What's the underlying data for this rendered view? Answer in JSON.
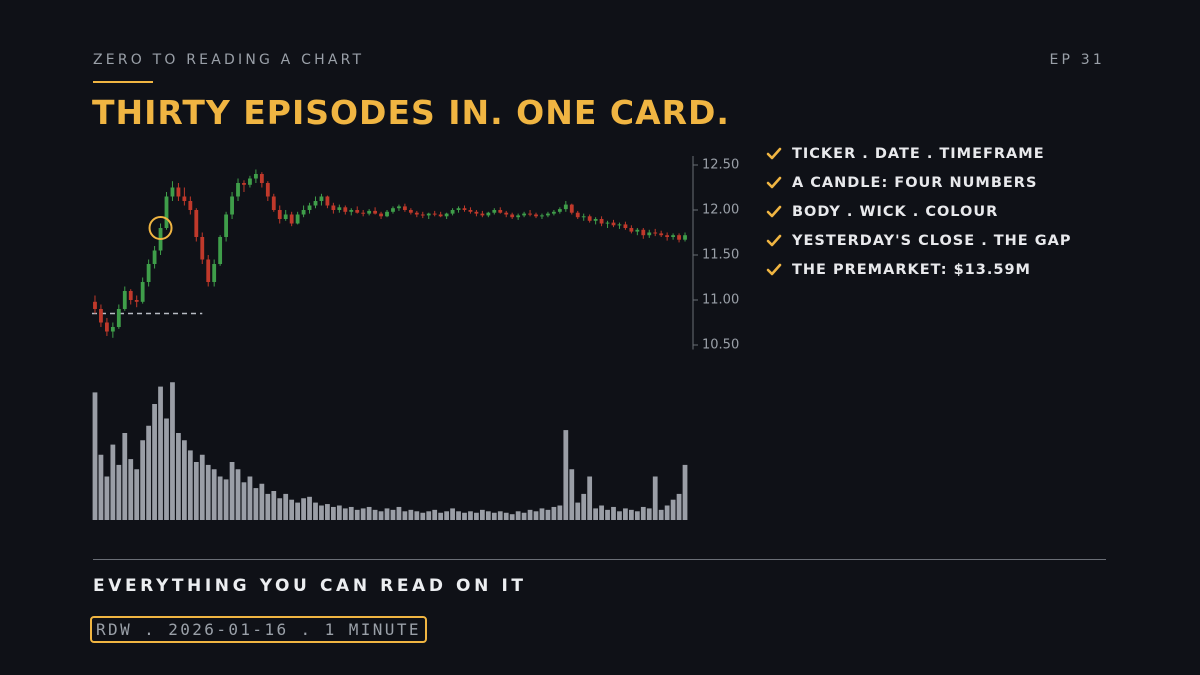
{
  "header": {
    "series": "ZERO TO READING A CHART",
    "episode": "EP 31",
    "title": "THIRTY EPISODES IN. ONE CARD."
  },
  "checklist": [
    "TICKER . DATE . TIMEFRAME",
    "A CANDLE: FOUR NUMBERS",
    "BODY . WICK . COLOUR",
    "YESTERDAY'S CLOSE . THE GAP",
    "THE PREMARKET: $13.59M"
  ],
  "footer": {
    "heading": "EVERYTHING YOU CAN READ ON IT",
    "tag": "RDW . 2026-01-16 . 1 MINUTE"
  },
  "chart_data": {
    "type": "candlestick",
    "ylim": [
      10.45,
      12.6
    ],
    "yticks": [
      {
        "value": 10.5,
        "label": "10.50"
      },
      {
        "value": 11,
        "label": "11.00"
      },
      {
        "value": 11.5,
        "label": "11.50"
      },
      {
        "value": 12,
        "label": "12.00"
      },
      {
        "value": 12.5,
        "label": "12.50"
      }
    ],
    "up_color": "#3f9e4a",
    "down_color": "#c0392b",
    "volume_color": "#9a9ea6",
    "prev_close": 10.85,
    "highlight_candle": 11,
    "volume_ylim": [
      0,
      100
    ],
    "candles": [
      [
        10.98,
        11.05,
        10.85,
        10.9
      ],
      [
        10.9,
        10.95,
        10.7,
        10.75
      ],
      [
        10.75,
        10.8,
        10.6,
        10.65
      ],
      [
        10.65,
        10.75,
        10.58,
        10.7
      ],
      [
        10.7,
        10.95,
        10.68,
        10.9
      ],
      [
        10.9,
        11.15,
        10.88,
        11.1
      ],
      [
        11.1,
        11.12,
        10.95,
        11.0
      ],
      [
        11.0,
        11.05,
        10.92,
        10.98
      ],
      [
        10.98,
        11.25,
        10.96,
        11.2
      ],
      [
        11.2,
        11.45,
        11.15,
        11.4
      ],
      [
        11.4,
        11.6,
        11.35,
        11.55
      ],
      [
        11.55,
        11.85,
        11.5,
        11.8
      ],
      [
        11.8,
        12.2,
        11.78,
        12.15
      ],
      [
        12.15,
        12.32,
        12.1,
        12.25
      ],
      [
        12.25,
        12.3,
        12.1,
        12.15
      ],
      [
        12.15,
        12.25,
        12.05,
        12.1
      ],
      [
        12.1,
        12.15,
        11.95,
        12.0
      ],
      [
        12.0,
        12.02,
        11.65,
        11.7
      ],
      [
        11.7,
        11.75,
        11.4,
        11.45
      ],
      [
        11.45,
        11.5,
        11.15,
        11.2
      ],
      [
        11.2,
        11.45,
        11.15,
        11.4
      ],
      [
        11.4,
        11.72,
        11.38,
        11.7
      ],
      [
        11.7,
        11.98,
        11.65,
        11.95
      ],
      [
        11.95,
        12.2,
        11.9,
        12.15
      ],
      [
        12.15,
        12.35,
        12.1,
        12.3
      ],
      [
        12.3,
        12.33,
        12.2,
        12.28
      ],
      [
        12.28,
        12.38,
        12.25,
        12.35
      ],
      [
        12.35,
        12.45,
        12.3,
        12.4
      ],
      [
        12.4,
        12.42,
        12.25,
        12.3
      ],
      [
        12.3,
        12.32,
        12.1,
        12.15
      ],
      [
        12.15,
        12.18,
        11.98,
        12.0
      ],
      [
        12.0,
        12.05,
        11.85,
        11.9
      ],
      [
        11.9,
        12.0,
        11.88,
        11.95
      ],
      [
        11.95,
        11.98,
        11.82,
        11.85
      ],
      [
        11.85,
        11.98,
        11.84,
        11.95
      ],
      [
        11.95,
        12.05,
        11.92,
        12.0
      ],
      [
        12.0,
        12.08,
        11.96,
        12.05
      ],
      [
        12.05,
        12.15,
        12.02,
        12.1
      ],
      [
        12.1,
        12.18,
        12.05,
        12.15
      ],
      [
        12.15,
        12.16,
        12.02,
        12.05
      ],
      [
        12.05,
        12.08,
        11.96,
        12.0
      ],
      [
        12.0,
        12.06,
        11.97,
        12.03
      ],
      [
        12.03,
        12.05,
        11.95,
        11.98
      ],
      [
        11.98,
        12.02,
        11.94,
        12.0
      ],
      [
        12.0,
        12.04,
        11.96,
        11.97
      ],
      [
        11.97,
        12.0,
        11.93,
        11.96
      ],
      [
        11.96,
        12.01,
        11.94,
        11.99
      ],
      [
        11.99,
        12.03,
        11.95,
        11.96
      ],
      [
        11.96,
        11.98,
        11.9,
        11.93
      ],
      [
        11.93,
        12.0,
        11.92,
        11.98
      ],
      [
        11.98,
        12.04,
        11.96,
        12.02
      ],
      [
        12.02,
        12.06,
        11.99,
        12.04
      ],
      [
        12.04,
        12.07,
        11.98,
        12.0
      ],
      [
        12.0,
        12.02,
        11.95,
        11.97
      ],
      [
        11.97,
        11.99,
        11.92,
        11.95
      ],
      [
        11.95,
        11.98,
        11.91,
        11.94
      ],
      [
        11.94,
        11.97,
        11.9,
        11.96
      ],
      [
        11.96,
        11.99,
        11.93,
        11.95
      ],
      [
        11.95,
        11.98,
        11.92,
        11.93
      ],
      [
        11.93,
        11.97,
        11.9,
        11.96
      ],
      [
        11.96,
        12.02,
        11.94,
        12.0
      ],
      [
        12.0,
        12.04,
        11.97,
        12.02
      ],
      [
        12.02,
        12.05,
        11.98,
        12.0
      ],
      [
        12.0,
        12.03,
        11.96,
        11.98
      ],
      [
        11.98,
        12.0,
        11.93,
        11.96
      ],
      [
        11.96,
        11.99,
        11.92,
        11.94
      ],
      [
        11.94,
        11.98,
        11.92,
        11.97
      ],
      [
        11.97,
        12.02,
        11.95,
        12.0
      ],
      [
        12.0,
        12.03,
        11.96,
        11.97
      ],
      [
        11.97,
        11.99,
        11.92,
        11.95
      ],
      [
        11.95,
        11.97,
        11.9,
        11.92
      ],
      [
        11.92,
        11.96,
        11.89,
        11.94
      ],
      [
        11.94,
        11.98,
        11.92,
        11.96
      ],
      [
        11.96,
        12.0,
        11.93,
        11.95
      ],
      [
        11.95,
        11.97,
        11.91,
        11.93
      ],
      [
        11.93,
        11.96,
        11.9,
        11.94
      ],
      [
        11.94,
        11.98,
        11.92,
        11.96
      ],
      [
        11.96,
        12.0,
        11.94,
        11.98
      ],
      [
        11.98,
        12.03,
        11.96,
        12.01
      ],
      [
        12.01,
        12.1,
        11.98,
        12.06
      ],
      [
        12.06,
        12.07,
        11.95,
        11.97
      ],
      [
        11.97,
        11.99,
        11.9,
        11.92
      ],
      [
        11.92,
        11.96,
        11.88,
        11.93
      ],
      [
        11.93,
        11.95,
        11.86,
        11.88
      ],
      [
        11.88,
        11.92,
        11.84,
        11.9
      ],
      [
        11.9,
        11.93,
        11.82,
        11.85
      ],
      [
        11.85,
        11.88,
        11.8,
        11.86
      ],
      [
        11.86,
        11.89,
        11.81,
        11.83
      ],
      [
        11.83,
        11.86,
        11.79,
        11.84
      ],
      [
        11.84,
        11.87,
        11.78,
        11.8
      ],
      [
        11.8,
        11.83,
        11.74,
        11.76
      ],
      [
        11.76,
        11.8,
        11.72,
        11.78
      ],
      [
        11.78,
        11.8,
        11.68,
        11.72
      ],
      [
        11.72,
        11.78,
        11.69,
        11.75
      ],
      [
        11.75,
        11.79,
        11.71,
        11.74
      ],
      [
        11.74,
        11.77,
        11.7,
        11.72
      ],
      [
        11.72,
        11.75,
        11.66,
        11.7
      ],
      [
        11.7,
        11.74,
        11.67,
        11.72
      ],
      [
        11.72,
        11.74,
        11.64,
        11.67
      ],
      [
        11.67,
        11.75,
        11.65,
        11.72
      ]
    ],
    "volumes": [
      88,
      45,
      30,
      52,
      38,
      60,
      42,
      35,
      55,
      65,
      80,
      92,
      70,
      95,
      60,
      55,
      48,
      40,
      45,
      38,
      35,
      30,
      28,
      40,
      35,
      26,
      30,
      22,
      25,
      18,
      20,
      15,
      18,
      14,
      12,
      15,
      16,
      12,
      10,
      11,
      9,
      10,
      8,
      9,
      7,
      8,
      9,
      7,
      6,
      8,
      7,
      9,
      6,
      7,
      6,
      5,
      6,
      7,
      5,
      6,
      8,
      6,
      5,
      6,
      5,
      7,
      6,
      5,
      6,
      5,
      4,
      6,
      5,
      7,
      6,
      8,
      7,
      9,
      10,
      62,
      35,
      12,
      18,
      30,
      8,
      10,
      7,
      9,
      6,
      8,
      7,
      6,
      9,
      8,
      30,
      7,
      10,
      14,
      18,
      38
    ]
  }
}
